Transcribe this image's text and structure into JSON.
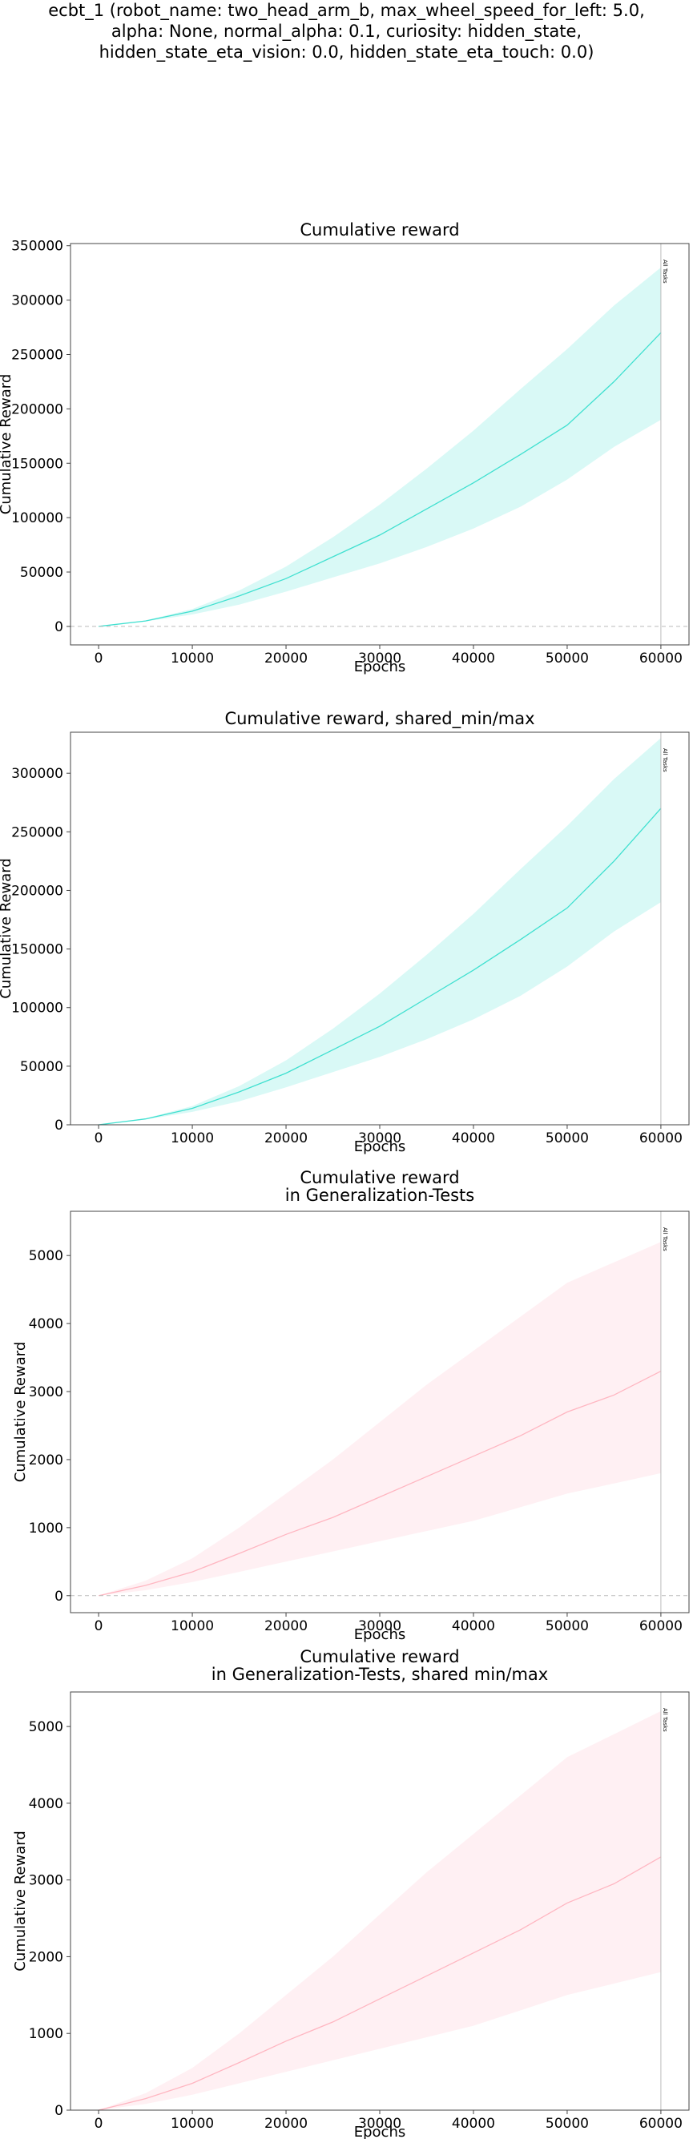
{
  "figure": {
    "suptitle_lines": [
      "ecbt_1 (robot_name: two_head_arm_b, max_wheel_speed_for_left: 5.0,",
      "alpha: None, normal_alpha: 0.1, curiosity: hidden_state,",
      "hidden_state_eta_vision: 0.0, hidden_state_eta_touch: 0.0)"
    ]
  },
  "colors": {
    "reward_line": "#40E0D0",
    "reward_band": "#40E0D0",
    "gen_line": "#FFB6C1",
    "gen_band": "#FFB6C1",
    "zero_line": "#bbbbbb",
    "marker_line": "#bbbbbb"
  },
  "chart_data": [
    {
      "type": "line",
      "title_lines": [
        "Cumulative reward"
      ],
      "xlabel": "Epochs",
      "ylabel": "Cumulative Reward",
      "xlim": [
        -3000,
        63000
      ],
      "ylim": [
        -17000,
        352000
      ],
      "xticks": [
        0,
        10000,
        20000,
        30000,
        40000,
        50000,
        60000
      ],
      "yticks": [
        0,
        50000,
        100000,
        150000,
        200000,
        250000,
        300000,
        350000
      ],
      "zero_line": true,
      "marker": {
        "x": 60000,
        "label": "All Tasks"
      },
      "color_key": "reward",
      "series": [
        {
          "x": [
            0,
            5000,
            10000,
            15000,
            20000,
            25000,
            30000,
            35000,
            40000,
            45000,
            50000,
            55000,
            60000
          ],
          "values": [
            0,
            5000,
            14000,
            28000,
            44000,
            64000,
            84000,
            108000,
            132000,
            158000,
            185000,
            225000,
            270000
          ],
          "lower": [
            0,
            4500,
            11000,
            20000,
            32000,
            45000,
            58000,
            73000,
            90000,
            110000,
            135000,
            165000,
            190000
          ],
          "upper": [
            0,
            5500,
            16000,
            33000,
            55000,
            82000,
            112000,
            145000,
            180000,
            218000,
            255000,
            295000,
            330000
          ]
        }
      ]
    },
    {
      "type": "line",
      "title_lines": [
        "Cumulative reward, shared_min/max"
      ],
      "xlabel": "Epochs",
      "ylabel": "Cumulative Reward",
      "xlim": [
        -3000,
        63000
      ],
      "ylim": [
        0,
        335000
      ],
      "xticks": [
        0,
        10000,
        20000,
        30000,
        40000,
        50000,
        60000
      ],
      "yticks": [
        0,
        50000,
        100000,
        150000,
        200000,
        250000,
        300000
      ],
      "zero_line": false,
      "marker": {
        "x": 60000,
        "label": "All Tasks"
      },
      "color_key": "reward",
      "series": [
        {
          "x": [
            0,
            5000,
            10000,
            15000,
            20000,
            25000,
            30000,
            35000,
            40000,
            45000,
            50000,
            55000,
            60000
          ],
          "values": [
            0,
            5000,
            14000,
            28000,
            44000,
            64000,
            84000,
            108000,
            132000,
            158000,
            185000,
            225000,
            270000
          ],
          "lower": [
            0,
            4500,
            11000,
            20000,
            32000,
            45000,
            58000,
            73000,
            90000,
            110000,
            135000,
            165000,
            190000
          ],
          "upper": [
            0,
            5500,
            16000,
            33000,
            55000,
            82000,
            112000,
            145000,
            180000,
            218000,
            255000,
            295000,
            330000
          ]
        }
      ]
    },
    {
      "type": "line",
      "title_lines": [
        "Cumulative reward",
        "in Generalization-Tests"
      ],
      "xlabel": "Epochs",
      "ylabel": "Cumulative Reward",
      "xlim": [
        -3000,
        63000
      ],
      "ylim": [
        -250,
        5650
      ],
      "xticks": [
        0,
        10000,
        20000,
        30000,
        40000,
        50000,
        60000
      ],
      "yticks": [
        0,
        1000,
        2000,
        3000,
        4000,
        5000
      ],
      "zero_line": true,
      "marker": {
        "x": 60000,
        "label": "All Tasks"
      },
      "color_key": "gen",
      "series": [
        {
          "x": [
            0,
            5000,
            10000,
            15000,
            20000,
            25000,
            30000,
            35000,
            40000,
            45000,
            50000,
            55000,
            60000
          ],
          "values": [
            0,
            150,
            350,
            620,
            900,
            1150,
            1450,
            1750,
            2050,
            2350,
            2700,
            2950,
            3300
          ],
          "lower": [
            0,
            80,
            200,
            350,
            500,
            650,
            800,
            950,
            1100,
            1300,
            1500,
            1650,
            1800
          ],
          "upper": [
            0,
            220,
            550,
            1000,
            1500,
            2000,
            2550,
            3100,
            3600,
            4100,
            4600,
            4900,
            5200
          ]
        }
      ]
    },
    {
      "type": "line",
      "title_lines": [
        "Cumulative reward",
        "in Generalization-Tests, shared min/max"
      ],
      "xlabel": "Epochs",
      "ylabel": "Cumulative Reward",
      "xlim": [
        -3000,
        63000
      ],
      "ylim": [
        0,
        5450
      ],
      "xticks": [
        0,
        10000,
        20000,
        30000,
        40000,
        50000,
        60000
      ],
      "yticks": [
        0,
        1000,
        2000,
        3000,
        4000,
        5000
      ],
      "zero_line": false,
      "marker": {
        "x": 60000,
        "label": "All Tasks"
      },
      "color_key": "gen",
      "series": [
        {
          "x": [
            0,
            5000,
            10000,
            15000,
            20000,
            25000,
            30000,
            35000,
            40000,
            45000,
            50000,
            55000,
            60000
          ],
          "values": [
            0,
            150,
            350,
            620,
            900,
            1150,
            1450,
            1750,
            2050,
            2350,
            2700,
            2950,
            3300
          ],
          "lower": [
            0,
            80,
            200,
            350,
            500,
            650,
            800,
            950,
            1100,
            1300,
            1500,
            1650,
            1800
          ],
          "upper": [
            0,
            220,
            550,
            1000,
            1500,
            2000,
            2550,
            3100,
            3600,
            4100,
            4600,
            4900,
            5200
          ]
        }
      ]
    }
  ]
}
